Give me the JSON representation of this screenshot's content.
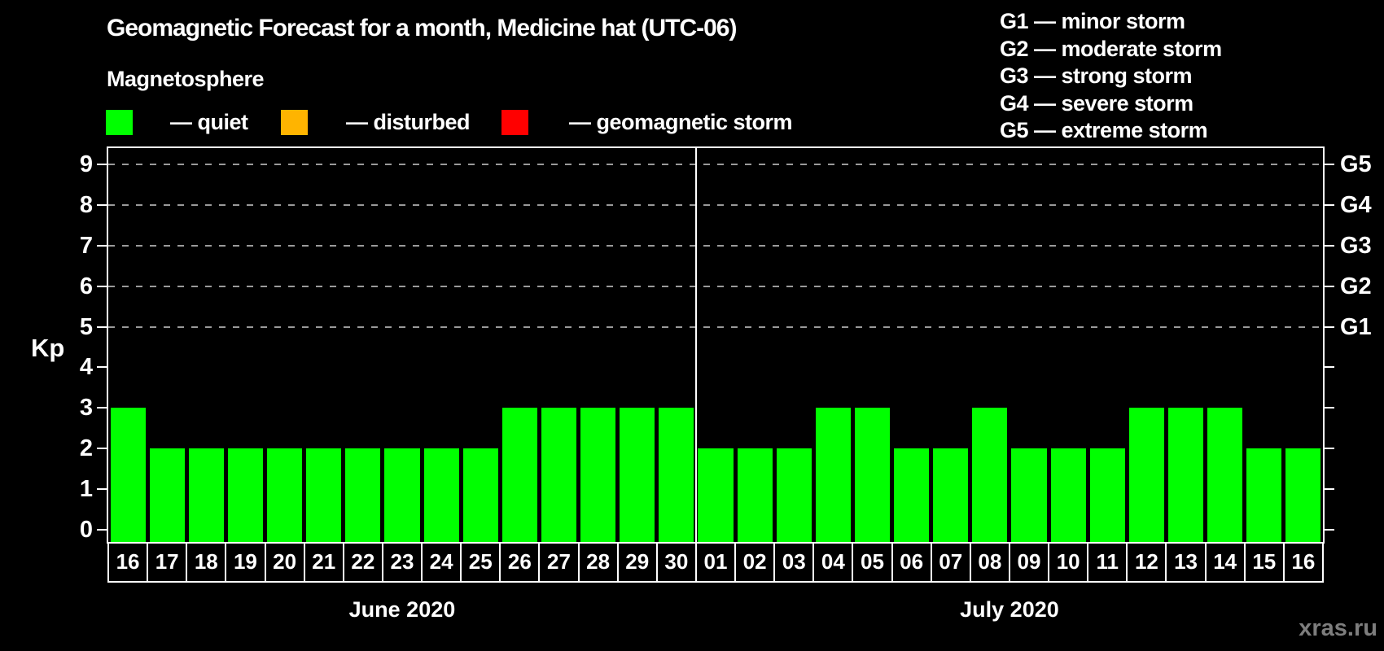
{
  "header": {
    "title": "Geomagnetic Forecast for a month, Medicine hat (UTC-06)",
    "subtitle": "Magnetosphere",
    "legend": [
      {
        "name": "quiet",
        "label": "— quiet",
        "color": "#00ff00"
      },
      {
        "name": "disturbed",
        "label": "— disturbed",
        "color": "#ffb400"
      },
      {
        "name": "geomagnetic-storm",
        "label": "— geomagnetic storm",
        "color": "#ff0000"
      }
    ],
    "g_scale": [
      "G1 — minor storm",
      "G2 — moderate storm",
      "G3 — strong storm",
      "G4 — severe storm",
      "G5 — extreme storm"
    ]
  },
  "watermark": "xras.ru",
  "chart_data": {
    "type": "bar",
    "title": "Geomagnetic Forecast for a month, Medicine hat (UTC-06)",
    "ylabel": "Kp",
    "ylim": [
      0,
      9
    ],
    "yticks": [
      0,
      1,
      2,
      3,
      4,
      5,
      6,
      7,
      8,
      9
    ],
    "gridlines_at": [
      5,
      6,
      7,
      8,
      9
    ],
    "grid": "dashed horizontal at storm levels only",
    "right_axis_labels": [
      {
        "value": 5,
        "label": "G1"
      },
      {
        "value": 6,
        "label": "G2"
      },
      {
        "value": 7,
        "label": "G3"
      },
      {
        "value": 8,
        "label": "G4"
      },
      {
        "value": 9,
        "label": "G5"
      }
    ],
    "bar_color": "#00ff00",
    "bar_status": "quiet",
    "groups": [
      {
        "label": "June 2020",
        "categories": [
          "16",
          "17",
          "18",
          "19",
          "20",
          "21",
          "22",
          "23",
          "24",
          "25",
          "26",
          "27",
          "28",
          "29",
          "30"
        ],
        "values": [
          3,
          2,
          2,
          2,
          2,
          2,
          2,
          2,
          2,
          2,
          3,
          3,
          3,
          3,
          3
        ]
      },
      {
        "label": "July 2020",
        "categories": [
          "01",
          "02",
          "03",
          "04",
          "05",
          "06",
          "07",
          "08",
          "09",
          "10",
          "11",
          "12",
          "13",
          "14",
          "15",
          "16"
        ],
        "values": [
          2,
          2,
          2,
          3,
          3,
          2,
          2,
          3,
          2,
          2,
          2,
          3,
          3,
          3,
          2,
          2
        ]
      }
    ]
  }
}
